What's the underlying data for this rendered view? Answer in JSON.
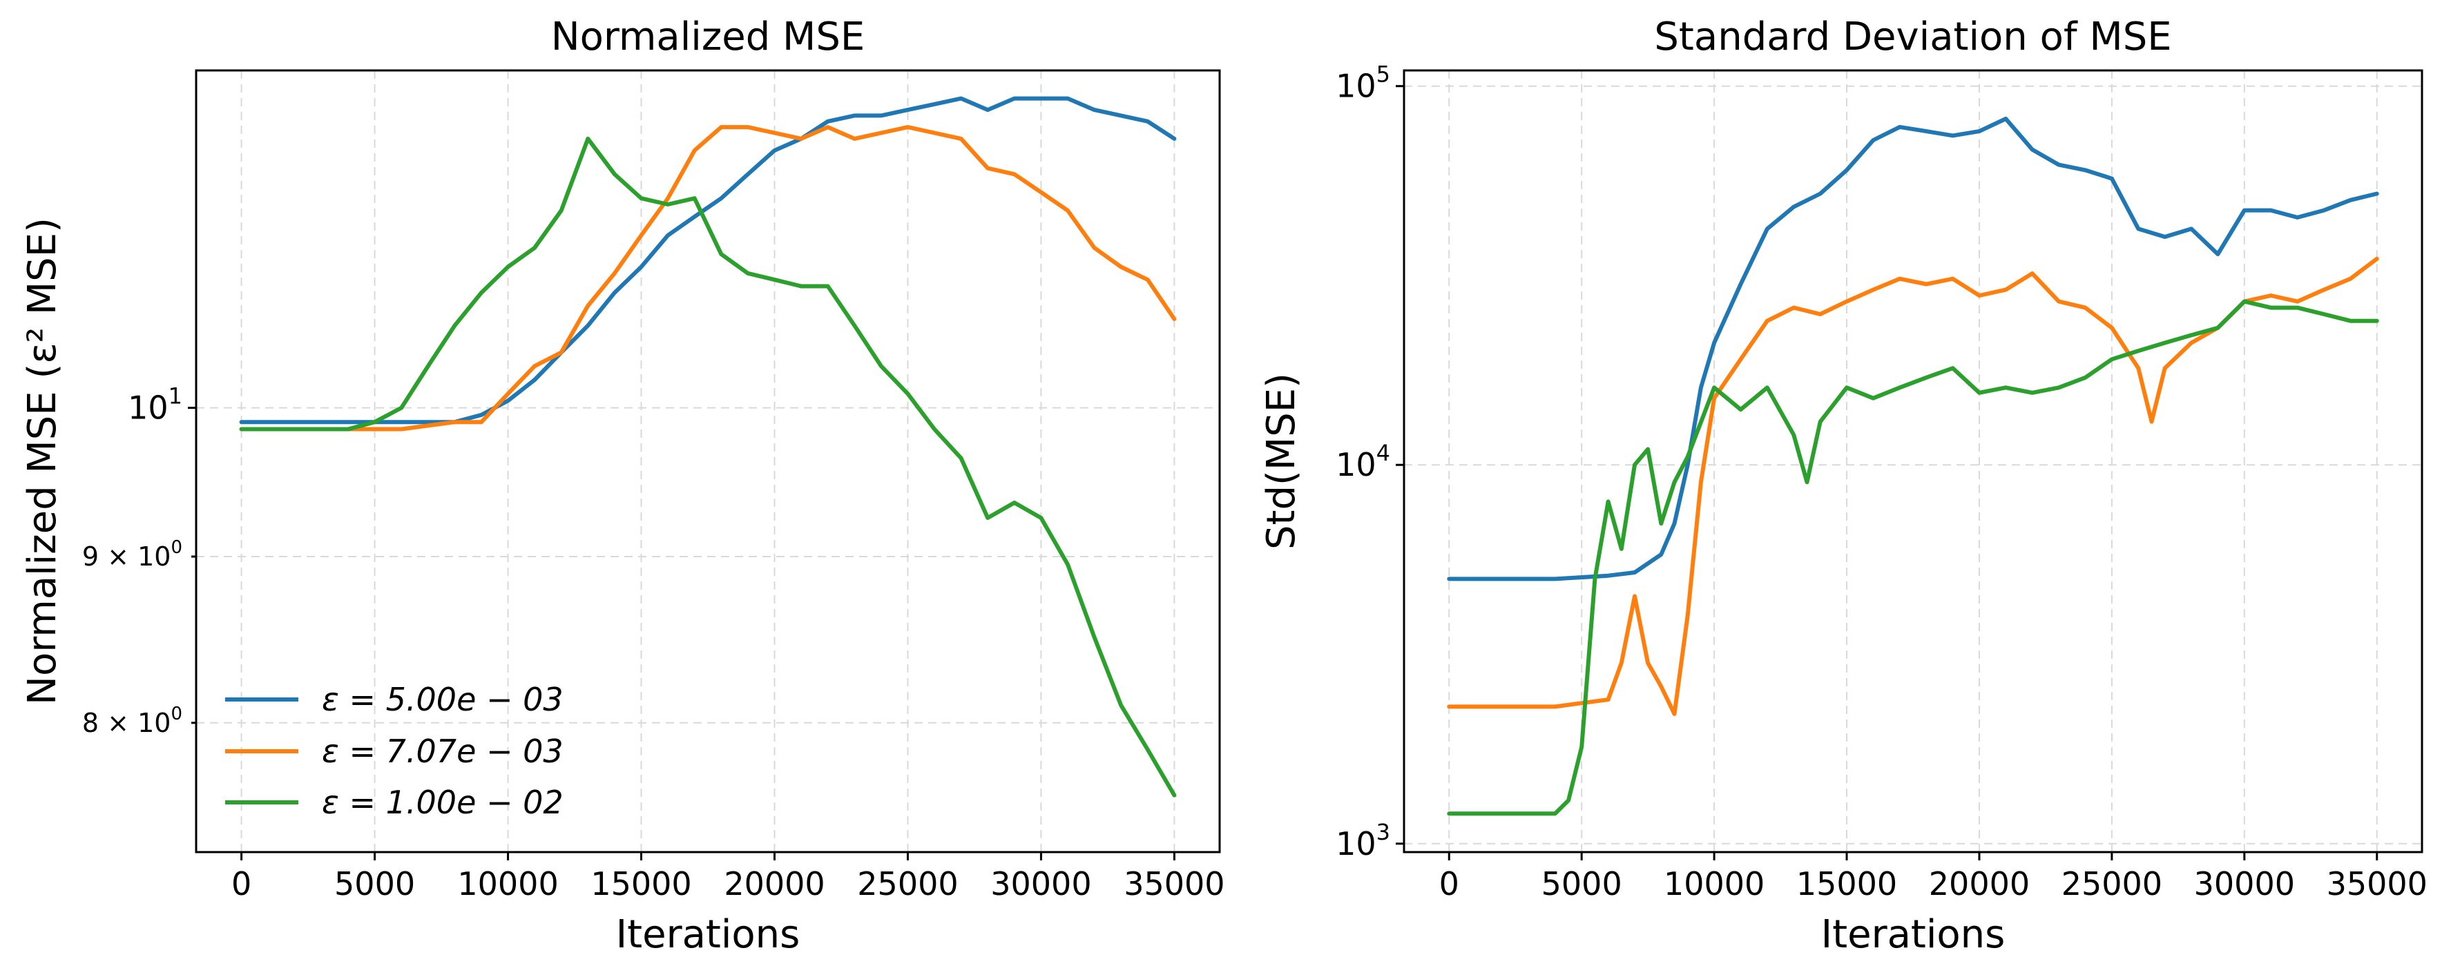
{
  "chart_data": [
    {
      "type": "line",
      "title": "Normalized MSE",
      "xlabel": "Iterations",
      "ylabel": "Normalized MSE  (ε² MSE)",
      "yscale": "log",
      "xlim": [
        -1700,
        36700
      ],
      "ylim": [
        7.3,
        12.7
      ],
      "x_ticks": [
        0,
        5000,
        10000,
        15000,
        20000,
        25000,
        30000,
        35000
      ],
      "x_tick_labels": [
        "0",
        "5000",
        "10000",
        "15000",
        "20000",
        "25000",
        "30000",
        "35000"
      ],
      "y_ticks": [
        {
          "value": 10,
          "label": "10",
          "sup": "1",
          "major": true
        },
        {
          "value": 9,
          "label": "9 × 10",
          "sup": "0",
          "major": false
        },
        {
          "value": 8,
          "label": "8 × 10",
          "sup": "0",
          "major": false
        }
      ],
      "grid": true,
      "legend_position": "lower-left",
      "series": [
        {
          "name": "ε = 5.00e − 03",
          "color": "#1f77b4",
          "x": [
            0,
            2000,
            4000,
            6000,
            8000,
            9000,
            10000,
            11000,
            12000,
            13000,
            14000,
            15000,
            16000,
            17000,
            18000,
            19000,
            20000,
            21000,
            22000,
            23000,
            24000,
            25000,
            26000,
            27000,
            28000,
            29000,
            30000,
            31000,
            32000,
            33000,
            34000,
            35000
          ],
          "y": [
            9.9,
            9.9,
            9.9,
            9.9,
            9.9,
            9.95,
            10.05,
            10.2,
            10.4,
            10.6,
            10.85,
            11.05,
            11.3,
            11.45,
            11.6,
            11.8,
            12.0,
            12.1,
            12.25,
            12.3,
            12.3,
            12.35,
            12.4,
            12.45,
            12.35,
            12.45,
            12.45,
            12.45,
            12.35,
            12.3,
            12.25,
            12.1
          ]
        },
        {
          "name": "ε = 7.07e − 03",
          "color": "#ff7f0e",
          "x": [
            0,
            2000,
            4000,
            6000,
            8000,
            9000,
            10000,
            11000,
            12000,
            13000,
            14000,
            15000,
            16000,
            17000,
            18000,
            19000,
            20000,
            21000,
            22000,
            23000,
            24000,
            25000,
            26000,
            27000,
            28000,
            29000,
            30000,
            31000,
            32000,
            33000,
            34000,
            35000
          ],
          "y": [
            9.85,
            9.85,
            9.85,
            9.85,
            9.9,
            9.9,
            10.1,
            10.3,
            10.4,
            10.75,
            11.0,
            11.3,
            11.6,
            12.0,
            12.2,
            12.2,
            12.15,
            12.1,
            12.2,
            12.1,
            12.15,
            12.2,
            12.15,
            12.1,
            11.85,
            11.8,
            11.65,
            11.5,
            11.2,
            11.05,
            10.95,
            10.65
          ]
        },
        {
          "name": "ε = 1.00e − 02",
          "color": "#2ca02c",
          "x": [
            0,
            2000,
            4000,
            5000,
            6000,
            7000,
            8000,
            9000,
            10000,
            11000,
            12000,
            13000,
            14000,
            15000,
            16000,
            17000,
            18000,
            19000,
            20000,
            21000,
            22000,
            23000,
            24000,
            25000,
            26000,
            27000,
            28000,
            29000,
            30000,
            31000,
            32000,
            33000,
            34000,
            35000
          ],
          "y": [
            9.85,
            9.85,
            9.85,
            9.9,
            10.0,
            10.3,
            10.6,
            10.85,
            11.05,
            11.2,
            11.5,
            12.1,
            11.8,
            11.6,
            11.55,
            11.6,
            11.15,
            11.0,
            10.95,
            10.9,
            10.9,
            10.6,
            10.3,
            10.1,
            9.85,
            9.65,
            9.25,
            9.35,
            9.25,
            8.95,
            8.5,
            8.1,
            7.85,
            7.6
          ]
        }
      ]
    },
    {
      "type": "line",
      "title": "Standard Deviation of MSE",
      "xlabel": "Iterations",
      "ylabel": "Std(MSE)",
      "yscale": "log",
      "xlim": [
        -1700,
        36700
      ],
      "ylim": [
        950,
        110000
      ],
      "x_ticks": [
        0,
        5000,
        10000,
        15000,
        20000,
        25000,
        30000,
        35000
      ],
      "x_tick_labels": [
        "0",
        "5000",
        "10000",
        "15000",
        "20000",
        "25000",
        "30000",
        "35000"
      ],
      "y_ticks": [
        {
          "value": 1000,
          "label": "10",
          "sup": "3",
          "major": true
        },
        {
          "value": 10000,
          "label": "10",
          "sup": "4",
          "major": true
        },
        {
          "value": 100000,
          "label": "10",
          "sup": "5",
          "major": true
        }
      ],
      "grid": true,
      "series": [
        {
          "name": "ε = 5.00e − 03",
          "color": "#1f77b4",
          "x": [
            0,
            2000,
            4000,
            6000,
            7000,
            8000,
            8500,
            9000,
            9500,
            10000,
            11000,
            12000,
            13000,
            14000,
            15000,
            16000,
            17000,
            18000,
            19000,
            20000,
            21000,
            22000,
            23000,
            24000,
            25000,
            26000,
            27000,
            28000,
            29000,
            30000,
            31000,
            32000,
            33000,
            34000,
            35000
          ],
          "y": [
            5000,
            5000,
            5000,
            5100,
            5200,
            5800,
            7000,
            10000,
            16000,
            21000,
            30000,
            42000,
            48000,
            52000,
            60000,
            72000,
            78000,
            76000,
            74000,
            76000,
            82000,
            68000,
            62000,
            60000,
            57000,
            42000,
            40000,
            42000,
            36000,
            47000,
            47000,
            45000,
            47000,
            50000,
            52000
          ]
        },
        {
          "name": "ε = 7.07e − 03",
          "color": "#ff7f0e",
          "x": [
            0,
            2000,
            4000,
            5000,
            6000,
            6500,
            7000,
            7500,
            8000,
            8500,
            9000,
            9500,
            10000,
            11000,
            12000,
            13000,
            14000,
            15000,
            16000,
            17000,
            18000,
            19000,
            20000,
            21000,
            22000,
            23000,
            24000,
            25000,
            26000,
            26500,
            27000,
            28000,
            29000,
            30000,
            31000,
            32000,
            33000,
            34000,
            35000
          ],
          "y": [
            2300,
            2300,
            2300,
            2350,
            2400,
            3000,
            4500,
            3000,
            2600,
            2200,
            4000,
            9000,
            15000,
            19000,
            24000,
            26000,
            25000,
            27000,
            29000,
            31000,
            30000,
            31000,
            28000,
            29000,
            32000,
            27000,
            26000,
            23000,
            18000,
            13000,
            18000,
            21000,
            23000,
            27000,
            28000,
            27000,
            29000,
            31000,
            35000
          ]
        },
        {
          "name": "ε = 1.00e − 02",
          "color": "#2ca02c",
          "x": [
            0,
            2000,
            4000,
            4500,
            5000,
            5500,
            6000,
            6500,
            7000,
            7500,
            8000,
            8500,
            9000,
            10000,
            11000,
            12000,
            13000,
            13500,
            14000,
            15000,
            16000,
            17000,
            18000,
            19000,
            20000,
            21000,
            22000,
            23000,
            24000,
            25000,
            26000,
            27000,
            28000,
            29000,
            30000,
            31000,
            32000,
            33000,
            34000,
            35000
          ],
          "y": [
            1200,
            1200,
            1200,
            1300,
            1800,
            5000,
            8000,
            6000,
            10000,
            11000,
            7000,
            9000,
            10500,
            16000,
            14000,
            16000,
            12000,
            9000,
            13000,
            16000,
            15000,
            16000,
            17000,
            18000,
            15500,
            16000,
            15500,
            16000,
            17000,
            19000,
            20000,
            21000,
            22000,
            23000,
            27000,
            26000,
            26000,
            25000,
            24000,
            24000
          ]
        }
      ]
    }
  ]
}
